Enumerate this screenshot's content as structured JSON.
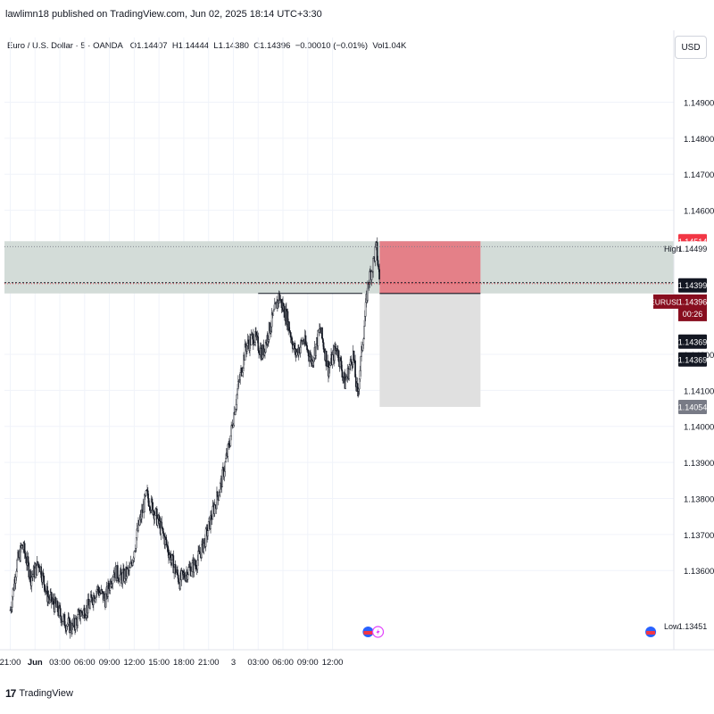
{
  "header": {
    "credit": "lawlimn18 published on TradingView.com, Jun 02, 2025 18:14 UTC+3:30"
  },
  "legend": {
    "symbol": "Euro / U.S. Dollar · 5 · OANDA",
    "open": "O1.14407",
    "high": "H1.14444",
    "low": "L1.14380",
    "close": "C1.14396",
    "change": "−0.00010 (−0.01%)",
    "volume": "Vol1.04K"
  },
  "currency_button": "USD",
  "footer": {
    "brand_mark": "17",
    "brand": "TradingView"
  },
  "price_tags": {
    "zone_top": "1.14514",
    "high_label": "High",
    "high_value": "1.14499",
    "current_a": "1.14399",
    "symbol_tag": "EURUSD",
    "last_price": "1.14396",
    "countdown": "00:26",
    "level_a": "1.14369",
    "level_b": "1.14369",
    "target": "1.14054",
    "low_label": "Low",
    "low_value": "1.13451"
  },
  "colors": {
    "up": "#089981",
    "down": "#f23645",
    "candle": "#131722",
    "zone_fill": "#d1dad6",
    "risk_fill": "#e57580",
    "reward_fill": "#e0e0e0",
    "last_price_tag": "#880e1f"
  },
  "chart_data": {
    "type": "candlestick",
    "symbol": "EURUSD",
    "timeframe": "5",
    "x_ticks": [
      "21:00",
      "Jun",
      "03:00",
      "06:00",
      "09:00",
      "12:00",
      "15:00",
      "18:00",
      "21:00",
      "3",
      "03:00",
      "06:00",
      "09:00",
      "12:00"
    ],
    "y_ticks": [
      1.149,
      1.148,
      1.147,
      1.146,
      1.142,
      1.141,
      1.14,
      1.139,
      1.138,
      1.137,
      1.136
    ],
    "y_tick_labels": [
      "1.14900",
      "1.14800",
      "1.14700",
      "1.14600",
      "1.14200",
      "1.14100",
      "1.14000",
      "1.13900",
      "1.13800",
      "1.13700",
      "1.13600"
    ],
    "ylim": [
      1.1338,
      1.1503
    ],
    "price_path": [
      [
        0,
        1.1349
      ],
      [
        0.8,
        1.1362
      ],
      [
        1.5,
        1.1367
      ],
      [
        2.5,
        1.1358
      ],
      [
        3.5,
        1.1362
      ],
      [
        4.5,
        1.1353
      ],
      [
        5.5,
        1.135
      ],
      [
        6.5,
        1.1346
      ],
      [
        7.5,
        1.1344
      ],
      [
        8.5,
        1.1348
      ],
      [
        9.5,
        1.135
      ],
      [
        10.5,
        1.1355
      ],
      [
        11.5,
        1.1352
      ],
      [
        12.5,
        1.136
      ],
      [
        13.5,
        1.1358
      ],
      [
        14.5,
        1.136
      ],
      [
        15.5,
        1.1372
      ],
      [
        16.5,
        1.1381
      ],
      [
        17.5,
        1.1376
      ],
      [
        18.5,
        1.137
      ],
      [
        19.5,
        1.1363
      ],
      [
        20.5,
        1.1357
      ],
      [
        21.5,
        1.136
      ],
      [
        22.5,
        1.1362
      ],
      [
        23.5,
        1.1368
      ],
      [
        24.5,
        1.1376
      ],
      [
        25.5,
        1.1384
      ],
      [
        26.5,
        1.1395
      ],
      [
        27.5,
        1.141
      ],
      [
        28.5,
        1.1422
      ],
      [
        29.5,
        1.1425
      ],
      [
        30.5,
        1.142
      ],
      [
        31.5,
        1.1428
      ],
      [
        32.5,
        1.1436
      ],
      [
        33.5,
        1.143
      ],
      [
        34.5,
        1.142
      ],
      [
        35.5,
        1.1424
      ],
      [
        36.5,
        1.1418
      ],
      [
        37.5,
        1.1427
      ],
      [
        38.5,
        1.1416
      ],
      [
        39.5,
        1.1422
      ],
      [
        40.5,
        1.1412
      ],
      [
        41.5,
        1.142
      ],
      [
        42.0,
        1.1408
      ],
      [
        42.7,
        1.1425
      ],
      [
        43.3,
        1.144
      ],
      [
        43.8,
        1.1444
      ],
      [
        44.3,
        1.145
      ],
      [
        44.7,
        1.144
      ]
    ],
    "resistance_level": {
      "price": 1.14369,
      "from_hour": 30.0,
      "to_hour": 42.6
    },
    "supply_zone": {
      "top": 1.14514,
      "bottom": 1.14369
    },
    "high_line": 1.14499,
    "current_line": 1.14399,
    "last_price": 1.14396,
    "position": {
      "type": "short",
      "entry": 1.14369,
      "stop": 1.14514,
      "target": 1.14054,
      "from_hour": 44.7,
      "to_hour": 56.9
    },
    "x_range_hours": [
      -0.7,
      80.3
    ]
  }
}
